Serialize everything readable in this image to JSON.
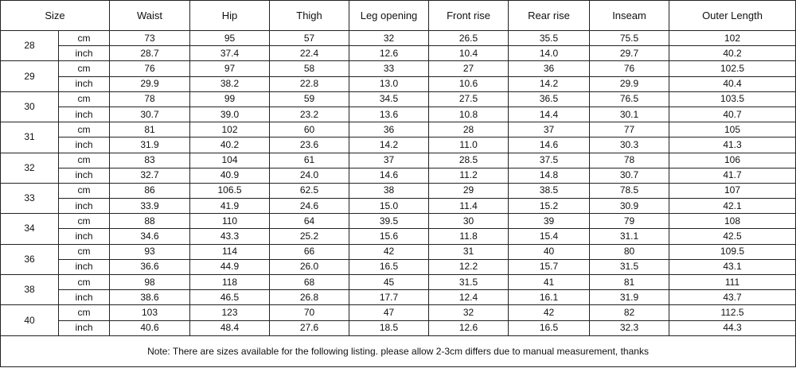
{
  "table": {
    "header": {
      "size": "Size",
      "columns": [
        "Waist",
        "Hip",
        "Thigh",
        "Leg opening",
        "Front rise",
        "Rear rise",
        "Inseam",
        "Outer Length"
      ]
    },
    "groups": [
      {
        "size": "28",
        "rows": [
          {
            "unit": "cm",
            "values": [
              "73",
              "95",
              "57",
              "32",
              "26.5",
              "35.5",
              "75.5",
              "102"
            ]
          },
          {
            "unit": "inch",
            "values": [
              "28.7",
              "37.4",
              "22.4",
              "12.6",
              "10.4",
              "14.0",
              "29.7",
              "40.2"
            ]
          }
        ]
      },
      {
        "size": "29",
        "rows": [
          {
            "unit": "cm",
            "values": [
              "76",
              "97",
              "58",
              "33",
              "27",
              "36",
              "76",
              "102.5"
            ]
          },
          {
            "unit": "inch",
            "values": [
              "29.9",
              "38.2",
              "22.8",
              "13.0",
              "10.6",
              "14.2",
              "29.9",
              "40.4"
            ]
          }
        ]
      },
      {
        "size": "30",
        "rows": [
          {
            "unit": "cm",
            "values": [
              "78",
              "99",
              "59",
              "34.5",
              "27.5",
              "36.5",
              "76.5",
              "103.5"
            ]
          },
          {
            "unit": "inch",
            "values": [
              "30.7",
              "39.0",
              "23.2",
              "13.6",
              "10.8",
              "14.4",
              "30.1",
              "40.7"
            ]
          }
        ]
      },
      {
        "size": "31",
        "rows": [
          {
            "unit": "cm",
            "values": [
              "81",
              "102",
              "60",
              "36",
              "28",
              "37",
              "77",
              "105"
            ]
          },
          {
            "unit": "inch",
            "values": [
              "31.9",
              "40.2",
              "23.6",
              "14.2",
              "11.0",
              "14.6",
              "30.3",
              "41.3"
            ]
          }
        ]
      },
      {
        "size": "32",
        "rows": [
          {
            "unit": "cm",
            "values": [
              "83",
              "104",
              "61",
              "37",
              "28.5",
              "37.5",
              "78",
              "106"
            ]
          },
          {
            "unit": "inch",
            "values": [
              "32.7",
              "40.9",
              "24.0",
              "14.6",
              "11.2",
              "14.8",
              "30.7",
              "41.7"
            ]
          }
        ]
      },
      {
        "size": "33",
        "rows": [
          {
            "unit": "cm",
            "values": [
              "86",
              "106.5",
              "62.5",
              "38",
              "29",
              "38.5",
              "78.5",
              "107"
            ]
          },
          {
            "unit": "inch",
            "values": [
              "33.9",
              "41.9",
              "24.6",
              "15.0",
              "11.4",
              "15.2",
              "30.9",
              "42.1"
            ]
          }
        ]
      },
      {
        "size": "34",
        "rows": [
          {
            "unit": "cm",
            "values": [
              "88",
              "110",
              "64",
              "39.5",
              "30",
              "39",
              "79",
              "108"
            ]
          },
          {
            "unit": "inch",
            "values": [
              "34.6",
              "43.3",
              "25.2",
              "15.6",
              "11.8",
              "15.4",
              "31.1",
              "42.5"
            ]
          }
        ]
      },
      {
        "size": "36",
        "rows": [
          {
            "unit": "cm",
            "values": [
              "93",
              "114",
              "66",
              "42",
              "31",
              "40",
              "80",
              "109.5"
            ]
          },
          {
            "unit": "inch",
            "values": [
              "36.6",
              "44.9",
              "26.0",
              "16.5",
              "12.2",
              "15.7",
              "31.5",
              "43.1"
            ]
          }
        ]
      },
      {
        "size": "38",
        "rows": [
          {
            "unit": "cm",
            "values": [
              "98",
              "118",
              "68",
              "45",
              "31.5",
              "41",
              "81",
              "111"
            ]
          },
          {
            "unit": "inch",
            "values": [
              "38.6",
              "46.5",
              "26.8",
              "17.7",
              "12.4",
              "16.1",
              "31.9",
              "43.7"
            ]
          }
        ]
      },
      {
        "size": "40",
        "rows": [
          {
            "unit": "cm",
            "values": [
              "103",
              "123",
              "70",
              "47",
              "32",
              "42",
              "82",
              "112.5"
            ]
          },
          {
            "unit": "inch",
            "values": [
              "40.6",
              "48.4",
              "27.6",
              "18.5",
              "12.6",
              "16.5",
              "32.3",
              "44.3"
            ]
          }
        ]
      }
    ],
    "note": "Note: There are sizes available for the following listing. please allow 2-3cm differs due to manual measurement, thanks"
  }
}
